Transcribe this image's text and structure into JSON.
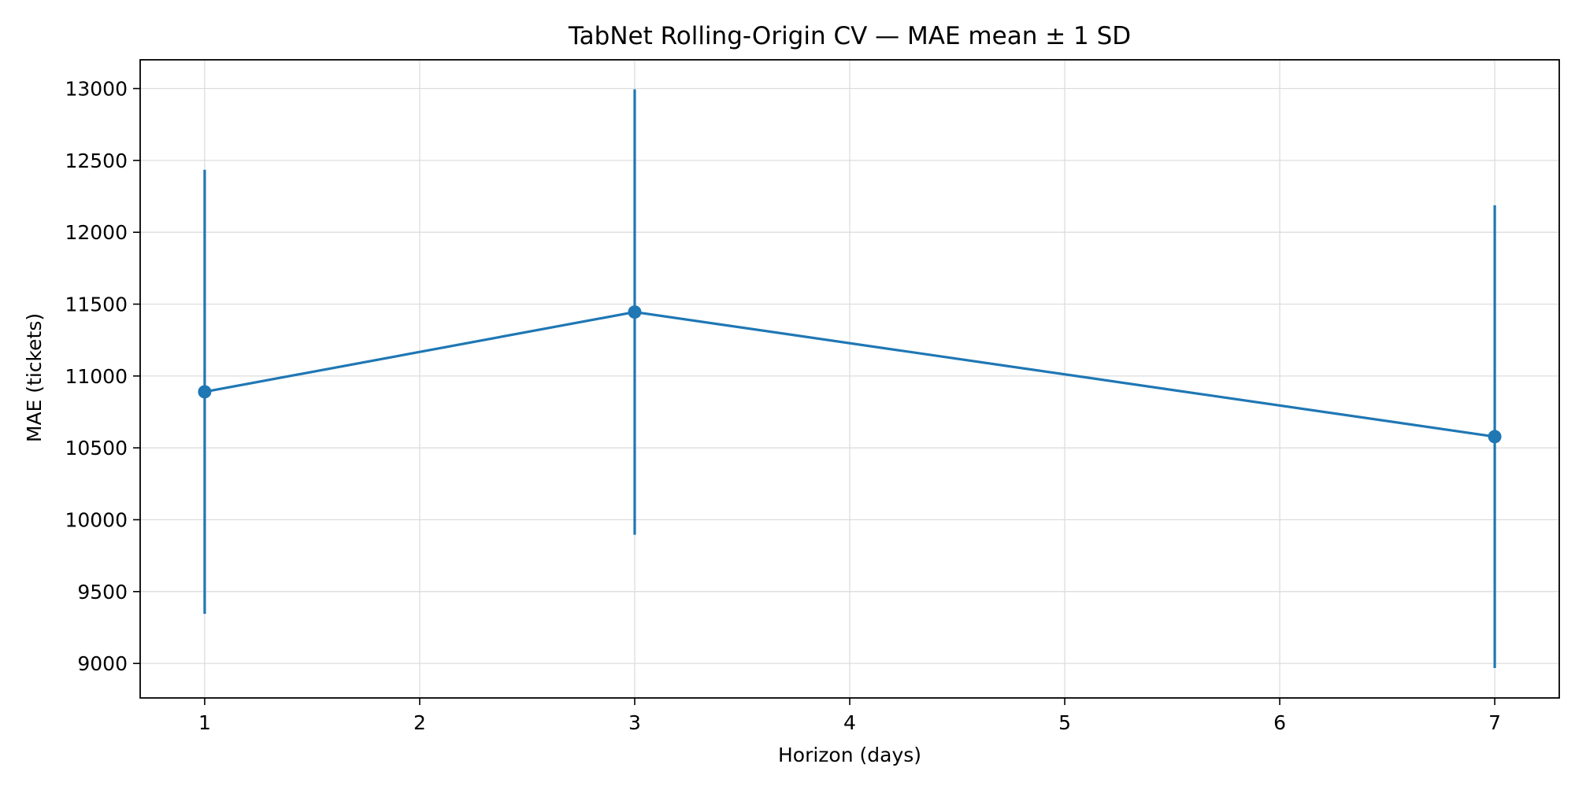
{
  "chart_data": {
    "type": "line",
    "title": "TabNet Rolling-Origin CV — MAE mean ± 1 SD",
    "xlabel": "Horizon (days)",
    "ylabel": "MAE (tickets)",
    "xlim": [
      0.7,
      7.3
    ],
    "ylim": [
      8760,
      13200
    ],
    "xticks": [
      1,
      2,
      3,
      4,
      5,
      6,
      7
    ],
    "yticks": [
      9000,
      9500,
      10000,
      10500,
      11000,
      11500,
      12000,
      12500,
      13000
    ],
    "grid": true,
    "legend": "none",
    "color": "#1f77b4",
    "series": [
      {
        "x": [
          1,
          3,
          7
        ],
        "y": [
          10890,
          11445,
          10578
        ],
        "yerr": [
          1545,
          1550,
          1610
        ]
      }
    ]
  }
}
